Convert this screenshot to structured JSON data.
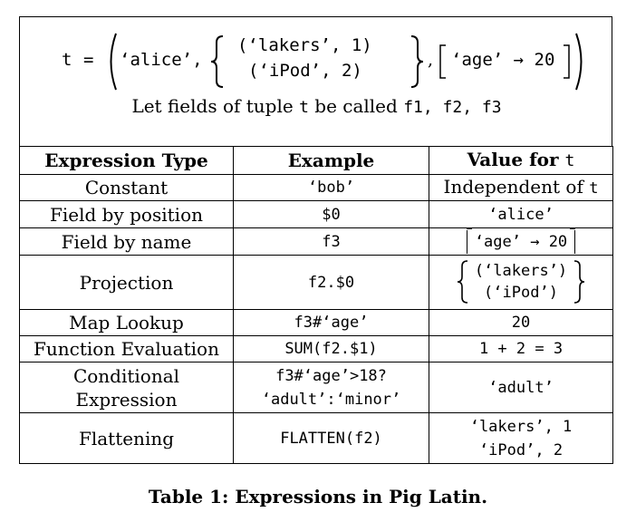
{
  "tuple": {
    "var": "t",
    "eq": "=",
    "name": "‘alice’,",
    "bag_items": [
      "(‘lakers’, 1)",
      "(‘iPod’, 2)"
    ],
    "comma": ",",
    "map_entry": "‘age’ → 20"
  },
  "fields_note": {
    "prefix": "Let fields of tuple ",
    "var": "t",
    "middle": " be called ",
    "fields": "f1, f2, f3"
  },
  "table": {
    "headers": [
      "Expression Type",
      "Example",
      "Value for "
    ],
    "header_var": "t",
    "rows": [
      {
        "type": "Constant",
        "example": "‘bob’",
        "value_text": "Independent of ",
        "value_var": "t"
      },
      {
        "type": "Field by position",
        "example": "$0",
        "value": "‘alice’"
      },
      {
        "type": "Field by name",
        "example": "f3",
        "value": "‘age’ → 20"
      },
      {
        "type": "Projection",
        "example": "f2.$0",
        "value_items": [
          "(‘lakers’)",
          "(‘iPod’)"
        ]
      },
      {
        "type": "Map Lookup",
        "example": "f3#‘age’",
        "value": "20"
      },
      {
        "type": "Function Evaluation",
        "example": "SUM(f2.$1)",
        "value": "1 + 2 = 3"
      },
      {
        "type_lines": [
          "Conditional",
          "Expression"
        ],
        "example_lines": [
          "f3#‘age’>18?",
          "‘adult’:‘minor’"
        ],
        "value": "‘adult’"
      },
      {
        "type": "Flattening",
        "example": "FLATTEN(f2)",
        "value_lines": [
          "‘lakers’, 1",
          "‘iPod’, 2"
        ]
      }
    ]
  },
  "caption": "Table 1: Expressions in Pig Latin."
}
